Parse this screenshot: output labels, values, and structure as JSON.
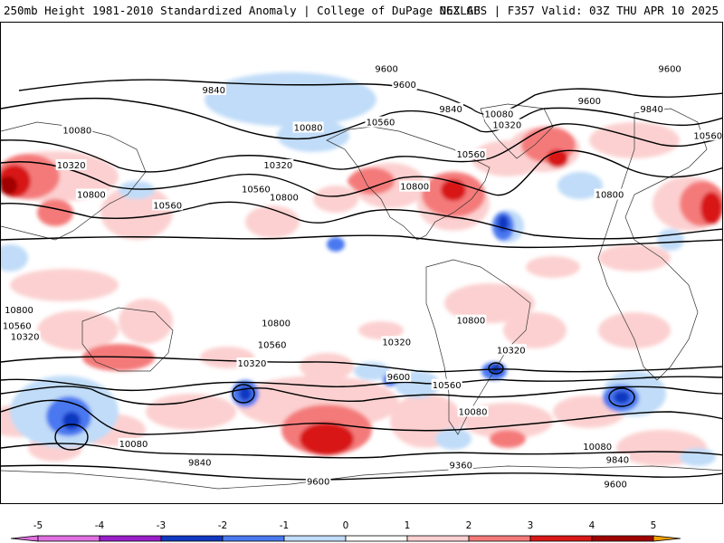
{
  "header": {
    "title_left": "250mb Height 1981-2010 Standardized Anomaly | College of DuPage NEXLAB",
    "title_right": "06Z GFS | F357 Valid: 03Z THU APR 10 2025"
  },
  "anomaly_colors": {
    "neg5": "#e070e0",
    "neg4": "#9a1ec8",
    "neg3": "#1038c0",
    "neg2": "#4a78f0",
    "neg1": "#c0dcf8",
    "pos1": "#fcd0d0",
    "pos2": "#f47a7a",
    "pos3": "#d81818",
    "pos4": "#a00000",
    "pos5": "#f0a000"
  },
  "contour_labels": [
    {
      "text": "9600",
      "lon": -168,
      "lat": 73
    },
    {
      "text": "9600",
      "lon": -159,
      "lat": 67
    },
    {
      "text": "9600",
      "lon": -27,
      "lat": 73
    },
    {
      "text": "9600",
      "lon": -67,
      "lat": 61
    },
    {
      "text": "9840",
      "lon": -136,
      "lat": 58
    },
    {
      "text": "9840",
      "lon": -36,
      "lat": 58
    },
    {
      "text": "9840",
      "lon": 106,
      "lat": 65
    },
    {
      "text": "10080",
      "lon": -112,
      "lat": 56
    },
    {
      "text": "10320",
      "lon": -108,
      "lat": 52
    },
    {
      "text": "10560",
      "lon": -171,
      "lat": 53
    },
    {
      "text": "10560",
      "lon": -126,
      "lat": 41
    },
    {
      "text": "10560",
      "lon": -8,
      "lat": 48
    },
    {
      "text": "10080",
      "lon": 38,
      "lat": 50
    },
    {
      "text": "10320",
      "lon": 35,
      "lat": 37
    },
    {
      "text": "10800",
      "lon": -154,
      "lat": 29
    },
    {
      "text": "10800",
      "lon": -57,
      "lat": 26
    },
    {
      "text": "10800",
      "lon": 45,
      "lat": 26
    },
    {
      "text": "10560",
      "lon": 83,
      "lat": 22
    },
    {
      "text": "10080",
      "lon": 153,
      "lat": 51
    },
    {
      "text": "10320",
      "lon": 138,
      "lat": 37
    },
    {
      "text": "10560",
      "lon": 127,
      "lat": 28
    },
    {
      "text": "10800",
      "lon": 141,
      "lat": 25
    },
    {
      "text": "10800",
      "lon": -126,
      "lat": -21
    },
    {
      "text": "10800",
      "lon": 9,
      "lat": -17
    },
    {
      "text": "10560",
      "lon": 8,
      "lat": -23
    },
    {
      "text": "10320",
      "lon": 12,
      "lat": -27
    },
    {
      "text": "10800",
      "lon": 137,
      "lat": -22
    },
    {
      "text": "10560",
      "lon": 135,
      "lat": -30
    },
    {
      "text": "10320",
      "lon": 125,
      "lat": -37
    },
    {
      "text": "10320",
      "lon": -163,
      "lat": -29
    },
    {
      "text": "9600",
      "lon": -162,
      "lat": -42
    },
    {
      "text": "10320",
      "lon": -106,
      "lat": -32
    },
    {
      "text": "10560",
      "lon": -138,
      "lat": -45
    },
    {
      "text": "10080",
      "lon": -125,
      "lat": -55
    },
    {
      "text": "10080",
      "lon": -63,
      "lat": -68
    },
    {
      "text": "9840",
      "lon": -53,
      "lat": -73
    },
    {
      "text": "9360",
      "lon": -131,
      "lat": -75
    },
    {
      "text": "9600",
      "lon": -54,
      "lat": -82
    },
    {
      "text": "10080",
      "lon": 66,
      "lat": -67
    },
    {
      "text": "9840",
      "lon": 99,
      "lat": -74
    },
    {
      "text": "9600",
      "lon": 158,
      "lat": -81
    }
  ],
  "colorbar": {
    "ticks": [
      "-5",
      "-4",
      "-3",
      "-2",
      "-1",
      "0",
      "1",
      "2",
      "3",
      "4",
      "5"
    ]
  }
}
